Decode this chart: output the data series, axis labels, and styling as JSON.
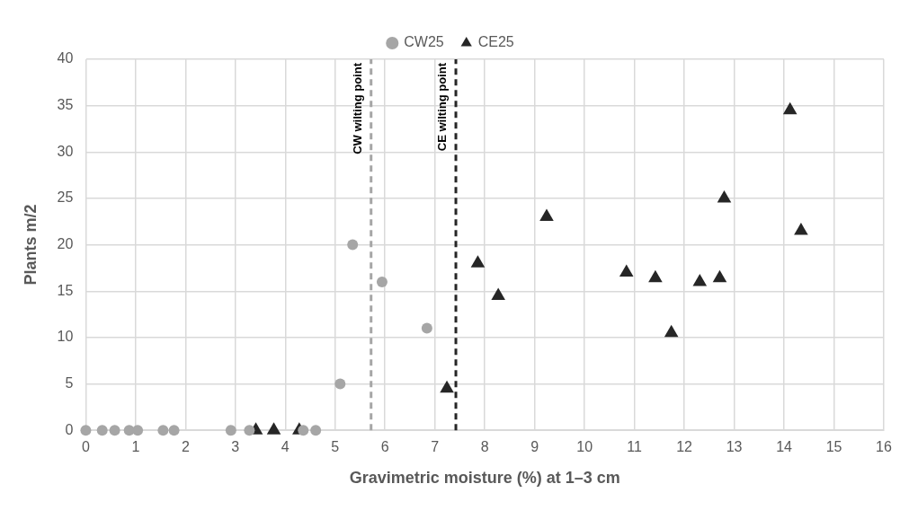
{
  "chart_data": {
    "type": "scatter",
    "xlabel": "Gravimetric moisture (%) at 1–3 cm",
    "ylabel": "Plants m/2",
    "series": [
      {
        "name": "CW25",
        "color": "#a6a6a6",
        "marker": "circle",
        "x": [
          0,
          0.33,
          0.58,
          0.87,
          1.04,
          1.55,
          1.77,
          2.91,
          3.28,
          4.36,
          4.61,
          5.1,
          5.35,
          5.94,
          6.84
        ],
        "values": [
          0,
          0,
          0,
          0,
          0,
          0,
          0,
          0,
          0,
          0,
          0,
          5,
          20,
          16,
          11
        ]
      },
      {
        "name": "CE25",
        "color": "#262626",
        "marker": "triangle",
        "x": [
          3.41,
          3.77,
          4.28,
          7.24,
          7.86,
          8.27,
          9.24,
          10.84,
          11.42,
          11.74,
          12.31,
          12.71,
          12.8,
          14.12,
          14.34
        ],
        "values": [
          0,
          0,
          0,
          4.5,
          18,
          14.5,
          23,
          17,
          16.4,
          10.5,
          16,
          16.4,
          25,
          34.5,
          21.5
        ]
      }
    ],
    "xlim": [
      0,
      16
    ],
    "xticks": [
      0,
      1,
      2,
      3,
      4,
      5,
      6,
      7,
      8,
      9,
      10,
      11,
      12,
      13,
      14,
      15,
      16
    ],
    "ylim": [
      0,
      40
    ],
    "yticks": [
      0,
      5,
      10,
      15,
      20,
      25,
      30,
      35,
      40
    ],
    "ref_lines": [
      {
        "axis": "x",
        "value": 5.72,
        "label": "CW wilting point",
        "color": "#a6a6a6",
        "line_style": "dashed"
      },
      {
        "axis": "x",
        "value": 7.42,
        "label": "CE wilting point",
        "color": "#262626",
        "line_style": "dashed"
      }
    ],
    "grid": true,
    "legend": "top"
  }
}
